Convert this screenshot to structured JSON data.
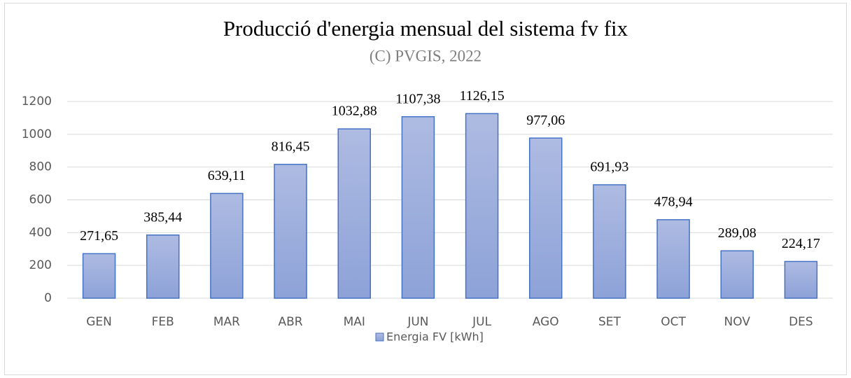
{
  "chart_data": {
    "type": "bar",
    "title": "Producció d'energia mensual del sistema fv fix",
    "subtitle": "(C) PVGIS, 2022",
    "categories": [
      "GEN",
      "FEB",
      "MAR",
      "ABR",
      "MAI",
      "JUN",
      "JUL",
      "AGO",
      "SET",
      "OCT",
      "NOV",
      "DES"
    ],
    "series": [
      {
        "name": "Energia FV [kWh]",
        "color": "#4472c4",
        "values": [
          271.65,
          385.44,
          639.11,
          816.45,
          1032.88,
          1107.38,
          1126.15,
          977.06,
          691.93,
          478.94,
          289.08,
          224.17
        ],
        "value_labels": [
          "271,65",
          "385,44",
          "639,11",
          "816,45",
          "1032,88",
          "1107,38",
          "1126,15",
          "977,06",
          "691,93",
          "478,94",
          "289,08",
          "224,17"
        ]
      }
    ],
    "ylim": [
      0,
      1200
    ],
    "yticks": [
      0,
      200,
      400,
      600,
      800,
      1000,
      1200
    ],
    "grid": true,
    "legend": "bottom"
  }
}
